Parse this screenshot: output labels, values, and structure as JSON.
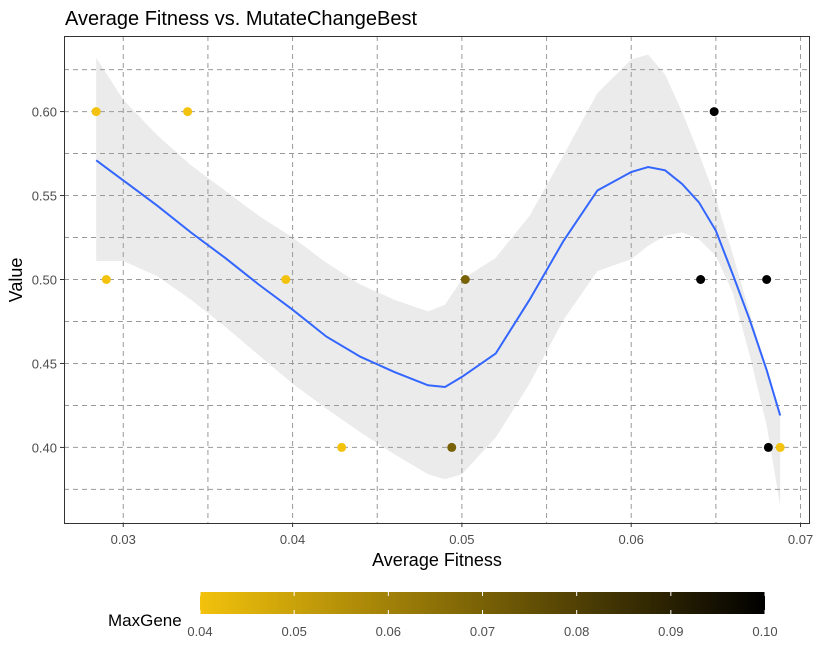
{
  "chart_data": {
    "type": "scatter",
    "title": "Average Fitness vs. MutateChangeBest",
    "xlabel": "Average Fitness",
    "ylabel": "Value",
    "xlim": [
      0.0265,
      0.0705
    ],
    "ylim": [
      0.355,
      0.645
    ],
    "x_ticks": [
      0.03,
      0.04,
      0.05,
      0.06,
      0.07
    ],
    "x_tick_labels": [
      "0.03",
      "0.04",
      "0.05",
      "0.06",
      "0.07"
    ],
    "y_ticks": [
      0.4,
      0.45,
      0.5,
      0.55,
      0.6
    ],
    "y_tick_labels": [
      "0.40",
      "0.45",
      "0.50",
      "0.55",
      "0.60"
    ],
    "grid": true,
    "points": [
      {
        "x": 0.0284,
        "y": 0.6,
        "maxgene": 0.04
      },
      {
        "x": 0.029,
        "y": 0.5,
        "maxgene": 0.04
      },
      {
        "x": 0.0338,
        "y": 0.6,
        "maxgene": 0.04
      },
      {
        "x": 0.0396,
        "y": 0.5,
        "maxgene": 0.04
      },
      {
        "x": 0.0429,
        "y": 0.4,
        "maxgene": 0.04
      },
      {
        "x": 0.0494,
        "y": 0.4,
        "maxgene": 0.07
      },
      {
        "x": 0.0502,
        "y": 0.5,
        "maxgene": 0.07
      },
      {
        "x": 0.0641,
        "y": 0.5,
        "maxgene": 0.1
      },
      {
        "x": 0.0649,
        "y": 0.6,
        "maxgene": 0.1
      },
      {
        "x": 0.068,
        "y": 0.5,
        "maxgene": 0.1
      },
      {
        "x": 0.0681,
        "y": 0.4,
        "maxgene": 0.1
      },
      {
        "x": 0.0688,
        "y": 0.4,
        "maxgene": 0.04
      }
    ],
    "smooth": {
      "x": [
        0.0284,
        0.03,
        0.032,
        0.034,
        0.036,
        0.038,
        0.04,
        0.042,
        0.044,
        0.046,
        0.048,
        0.049,
        0.05,
        0.052,
        0.054,
        0.056,
        0.058,
        0.06,
        0.061,
        0.062,
        0.063,
        0.064,
        0.065,
        0.066,
        0.067,
        0.068,
        0.0688
      ],
      "y": [
        0.571,
        0.559,
        0.544,
        0.528,
        0.513,
        0.497,
        0.482,
        0.466,
        0.454,
        0.445,
        0.437,
        0.436,
        0.442,
        0.456,
        0.488,
        0.523,
        0.553,
        0.564,
        0.567,
        0.565,
        0.557,
        0.546,
        0.529,
        0.503,
        0.476,
        0.446,
        0.419
      ],
      "lower": [
        0.511,
        0.511,
        0.502,
        0.488,
        0.472,
        0.455,
        0.438,
        0.423,
        0.409,
        0.396,
        0.384,
        0.381,
        0.384,
        0.406,
        0.438,
        0.476,
        0.505,
        0.512,
        0.52,
        0.526,
        0.528,
        0.524,
        0.514,
        0.492,
        0.455,
        0.413,
        0.365
      ],
      "upper": [
        0.632,
        0.607,
        0.586,
        0.568,
        0.553,
        0.538,
        0.525,
        0.51,
        0.497,
        0.488,
        0.481,
        0.485,
        0.5,
        0.513,
        0.538,
        0.574,
        0.611,
        0.631,
        0.634,
        0.622,
        0.6,
        0.575,
        0.548,
        0.515,
        0.48,
        0.447,
        0.419
      ]
    },
    "colorbar": {
      "title": "MaxGene",
      "min": 0.04,
      "max": 0.1,
      "ticks": [
        0.04,
        0.05,
        0.06,
        0.07,
        0.08,
        0.09,
        0.1
      ],
      "tick_labels": [
        "0.04",
        "0.05",
        "0.06",
        "0.07",
        "0.08",
        "0.09",
        "0.10"
      ],
      "low_color": "#F2C20C",
      "high_color": "#000000",
      "placement": "bottom"
    },
    "colors": {
      "smooth_line": "#3366FF",
      "ribbon": "#EBEBEB",
      "grid": "#9a9a9a",
      "panel_border": "#333333"
    }
  }
}
